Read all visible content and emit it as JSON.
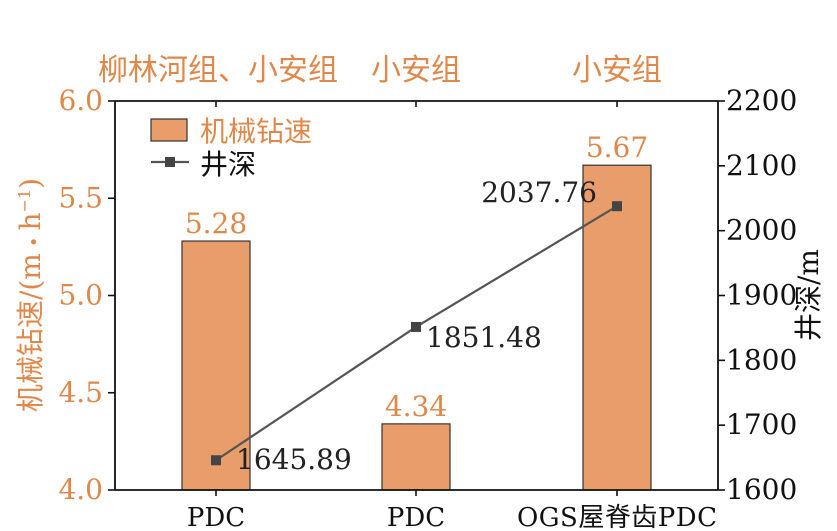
{
  "chart_data": {
    "type": "bar+line",
    "categories": [
      "PDC",
      "PDC",
      "OGS屋脊齿PDC"
    ],
    "group_labels": [
      "柳林河组、小安组",
      "小安组",
      "小安组"
    ],
    "bar_series": {
      "name": "机械钻速",
      "values": [
        5.28,
        4.34,
        5.67
      ],
      "value_labels": [
        "5.28",
        "4.34",
        "5.67"
      ],
      "color": "#E89D6B"
    },
    "line_series": {
      "name": "井深",
      "values": [
        1645.89,
        1851.48,
        2037.76
      ],
      "value_labels": [
        "1645.89",
        "1851.48",
        "2037.76"
      ],
      "color": "#555555"
    },
    "y_left": {
      "label": "机械钻速/(m·h⁻¹)",
      "label_main": "机械钻速/(m",
      "label_dot": "•",
      "label_h": "h",
      "label_sup": "−1",
      "label_close": ")",
      "ylim": [
        4.0,
        6.0
      ],
      "ticks": [
        4.0,
        4.5,
        5.0,
        5.5,
        6.0
      ],
      "tick_labels": [
        "4.0",
        "4.5",
        "5.0",
        "5.5",
        "6.0"
      ],
      "color": "#E0884A"
    },
    "y_right": {
      "label": "井深/m",
      "ylim": [
        1600,
        2200
      ],
      "ticks": [
        1600,
        1700,
        1800,
        1900,
        2000,
        2100,
        2200
      ],
      "tick_labels": [
        "1600",
        "1700",
        "1800",
        "1900",
        "2000",
        "2100",
        "2200"
      ],
      "color": "#222222"
    },
    "legend": {
      "position": "top-left"
    },
    "grid": false
  }
}
